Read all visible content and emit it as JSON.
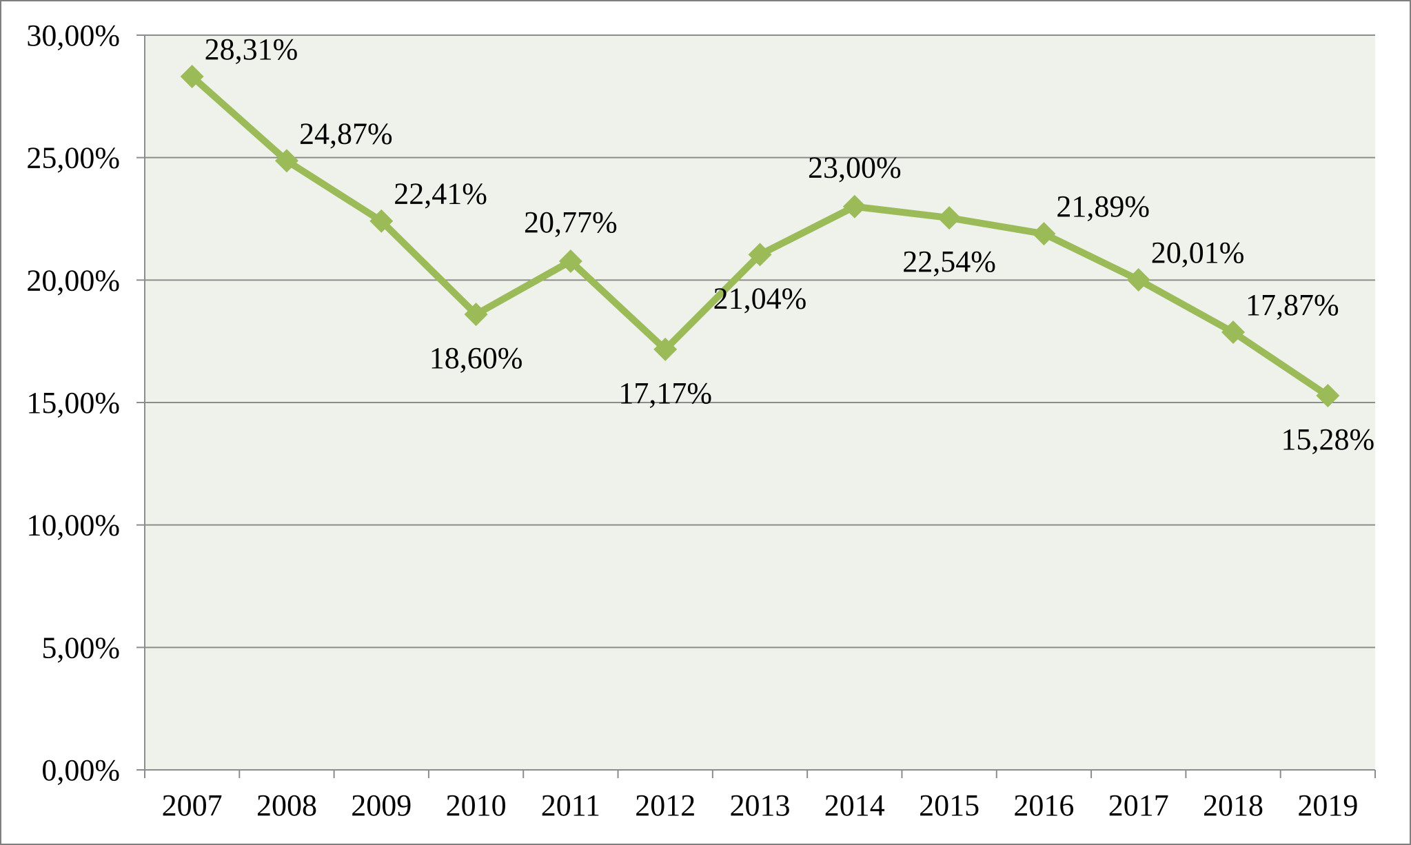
{
  "colors": {
    "plot_background": "#eff2ea",
    "series_line": "#9bbb59",
    "gridline": "#8c8c8c",
    "axis": "#8c8c8c",
    "frame": "#7f7f7f",
    "text": "#000000"
  },
  "chart_data": {
    "type": "line",
    "title": "",
    "xlabel": "",
    "ylabel": "",
    "categories": [
      "2007",
      "2008",
      "2009",
      "2010",
      "2011",
      "2012",
      "2013",
      "2014",
      "2015",
      "2016",
      "2017",
      "2018",
      "2019"
    ],
    "ylim": [
      0,
      30
    ],
    "yticks": [
      0,
      5,
      10,
      15,
      20,
      25,
      30
    ],
    "ytick_labels": [
      "0,00%",
      "5,00%",
      "10,00%",
      "15,00%",
      "20,00%",
      "25,00%",
      "30,00%"
    ],
    "grid": true,
    "legend": "none",
    "marker": "diamond",
    "series": [
      {
        "values": [
          28.31,
          24.87,
          22.41,
          18.6,
          20.77,
          17.17,
          21.04,
          23.0,
          22.54,
          21.89,
          20.01,
          17.87,
          15.28
        ],
        "labels": [
          "28,31%",
          "24,87%",
          "22,41%",
          "18,60%",
          "20,77%",
          "17,17%",
          "21,04%",
          "23,00%",
          "22,54%",
          "21,89%",
          "20,01%",
          "17,87%",
          "15,28%"
        ],
        "label_positions": [
          "right",
          "right",
          "right",
          "below",
          "above",
          "below",
          "below",
          "above",
          "below",
          "right",
          "right",
          "right",
          "below"
        ]
      }
    ]
  }
}
